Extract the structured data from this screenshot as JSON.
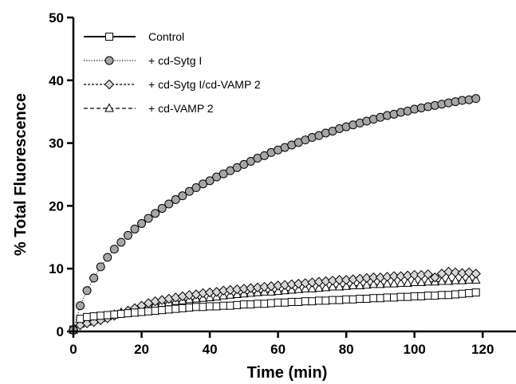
{
  "chart_data": {
    "type": "scatter",
    "title": "",
    "xlabel": "Time (min)",
    "ylabel": "% Total Fluorescence",
    "xlim": [
      0,
      130
    ],
    "ylim": [
      0,
      50
    ],
    "xticks": [
      0,
      20,
      40,
      60,
      80,
      100,
      120
    ],
    "yticks": [
      0,
      10,
      20,
      30,
      40,
      50
    ],
    "grid": false,
    "legend_position": "top-left",
    "series": [
      {
        "name": "Control",
        "marker": "square",
        "line_style": "solid",
        "color": "#000000",
        "fill": "#ffffff",
        "x": [
          0,
          2,
          4,
          6,
          8,
          10,
          12,
          14,
          16,
          18,
          20,
          22,
          24,
          26,
          28,
          30,
          32,
          34,
          36,
          38,
          40,
          42,
          44,
          46,
          48,
          50,
          52,
          54,
          56,
          58,
          60,
          62,
          64,
          66,
          68,
          70,
          72,
          74,
          76,
          78,
          80,
          82,
          84,
          86,
          88,
          90,
          92,
          94,
          96,
          98,
          100,
          102,
          104,
          106,
          108,
          110,
          112,
          114,
          116,
          118
        ],
        "y": [
          0.3,
          2.0,
          2.3,
          2.4,
          2.5,
          2.6,
          2.7,
          2.8,
          2.9,
          3.0,
          3.1,
          3.2,
          3.3,
          3.4,
          3.5,
          3.6,
          3.7,
          3.8,
          3.9,
          3.9,
          4.0,
          4.0,
          4.1,
          4.1,
          4.2,
          4.3,
          4.3,
          4.4,
          4.4,
          4.5,
          4.6,
          4.6,
          4.7,
          4.7,
          4.8,
          4.8,
          4.9,
          4.9,
          5.0,
          5.0,
          5.1,
          5.1,
          5.2,
          5.2,
          5.3,
          5.3,
          5.4,
          5.4,
          5.5,
          5.5,
          5.6,
          5.6,
          5.7,
          5.7,
          5.8,
          5.8,
          5.9,
          6.0,
          6.1,
          6.2
        ]
      },
      {
        "name": "+ cd-Sytg I",
        "marker": "circle",
        "line_style": "dotted",
        "color": "#000000",
        "fill": "#a6a6a6",
        "x": [
          0,
          2,
          4,
          6,
          8,
          10,
          12,
          14,
          16,
          18,
          20,
          22,
          24,
          26,
          28,
          30,
          32,
          34,
          36,
          38,
          40,
          42,
          44,
          46,
          48,
          50,
          52,
          54,
          56,
          58,
          60,
          62,
          64,
          66,
          68,
          70,
          72,
          74,
          76,
          78,
          80,
          82,
          84,
          86,
          88,
          90,
          92,
          94,
          96,
          98,
          100,
          102,
          104,
          106,
          108,
          110,
          112,
          114,
          116,
          118
        ],
        "y": [
          0.2,
          4.1,
          6.5,
          8.5,
          10.3,
          11.8,
          13.1,
          14.2,
          15.3,
          16.3,
          17.2,
          18.0,
          18.8,
          19.6,
          20.3,
          21.0,
          21.6,
          22.3,
          22.9,
          23.5,
          24.0,
          24.6,
          25.1,
          25.6,
          26.1,
          26.6,
          27.1,
          27.6,
          28.0,
          28.5,
          28.9,
          29.3,
          29.7,
          30.1,
          30.5,
          30.9,
          31.2,
          31.6,
          31.9,
          32.3,
          32.6,
          32.9,
          33.2,
          33.5,
          33.8,
          34.1,
          34.4,
          34.6,
          34.9,
          35.1,
          35.4,
          35.6,
          35.8,
          36.0,
          36.2,
          36.4,
          36.6,
          36.8,
          36.9,
          37.1
        ]
      },
      {
        "name": "+ cd-Sytg I/cd-VAMP 2",
        "marker": "diamond",
        "line_style": "short-dashed",
        "color": "#000000",
        "fill": "#d6d6d6",
        "x": [
          0,
          2,
          4,
          6,
          8,
          10,
          12,
          14,
          16,
          18,
          20,
          22,
          24,
          26,
          28,
          30,
          32,
          34,
          36,
          38,
          40,
          42,
          44,
          46,
          48,
          50,
          52,
          54,
          56,
          58,
          60,
          62,
          64,
          66,
          68,
          70,
          72,
          74,
          76,
          78,
          80,
          82,
          84,
          86,
          88,
          90,
          92,
          94,
          96,
          98,
          100,
          102,
          104,
          106,
          108,
          110,
          112,
          114,
          116,
          118
        ],
        "y": [
          0.3,
          1.0,
          1.3,
          1.5,
          1.8,
          2.1,
          2.5,
          2.9,
          3.3,
          3.7,
          4.1,
          4.5,
          4.8,
          5.0,
          5.2,
          5.4,
          5.6,
          5.8,
          5.9,
          6.1,
          6.2,
          6.3,
          6.5,
          6.6,
          6.7,
          6.8,
          6.9,
          7.0,
          7.1,
          7.2,
          7.3,
          7.4,
          7.5,
          7.6,
          7.7,
          7.8,
          7.9,
          8.0,
          8.1,
          8.2,
          8.2,
          8.3,
          8.4,
          8.5,
          8.6,
          8.6,
          8.7,
          8.8,
          8.8,
          8.9,
          9.0,
          9.0,
          9.1,
          8.6,
          9.2,
          9.5,
          9.4,
          9.3,
          9.4,
          9.2
        ]
      },
      {
        "name": "+ cd-VAMP 2",
        "marker": "triangle",
        "line_style": "dashed",
        "color": "#000000",
        "fill": "#ffffff",
        "x": [
          0,
          2,
          4,
          6,
          8,
          10,
          12,
          14,
          16,
          18,
          20,
          22,
          24,
          26,
          28,
          30,
          32,
          34,
          36,
          38,
          40,
          42,
          44,
          46,
          48,
          50,
          52,
          54,
          56,
          58,
          60,
          62,
          64,
          66,
          68,
          70,
          72,
          74,
          76,
          78,
          80,
          82,
          84,
          86,
          88,
          90,
          92,
          94,
          96,
          98,
          100,
          102,
          104,
          106,
          108,
          110,
          112,
          114,
          116,
          118
        ],
        "y": [
          0.2,
          1.2,
          1.5,
          1.8,
          2.1,
          2.4,
          2.7,
          3.0,
          3.3,
          3.6,
          3.9,
          4.1,
          4.3,
          4.5,
          4.6,
          4.8,
          4.9,
          5.1,
          5.2,
          5.3,
          5.4,
          5.5,
          5.7,
          5.8,
          5.9,
          6.0,
          6.1,
          6.2,
          6.3,
          6.3,
          6.4,
          6.5,
          6.6,
          6.7,
          6.8,
          6.8,
          6.9,
          7.0,
          7.1,
          7.1,
          7.2,
          7.3,
          7.3,
          7.4,
          7.5,
          7.5,
          7.6,
          7.6,
          7.7,
          7.7,
          7.8,
          7.8,
          7.9,
          7.9,
          8.0,
          8.0,
          8.1,
          8.1,
          8.2,
          8.2
        ]
      }
    ]
  }
}
